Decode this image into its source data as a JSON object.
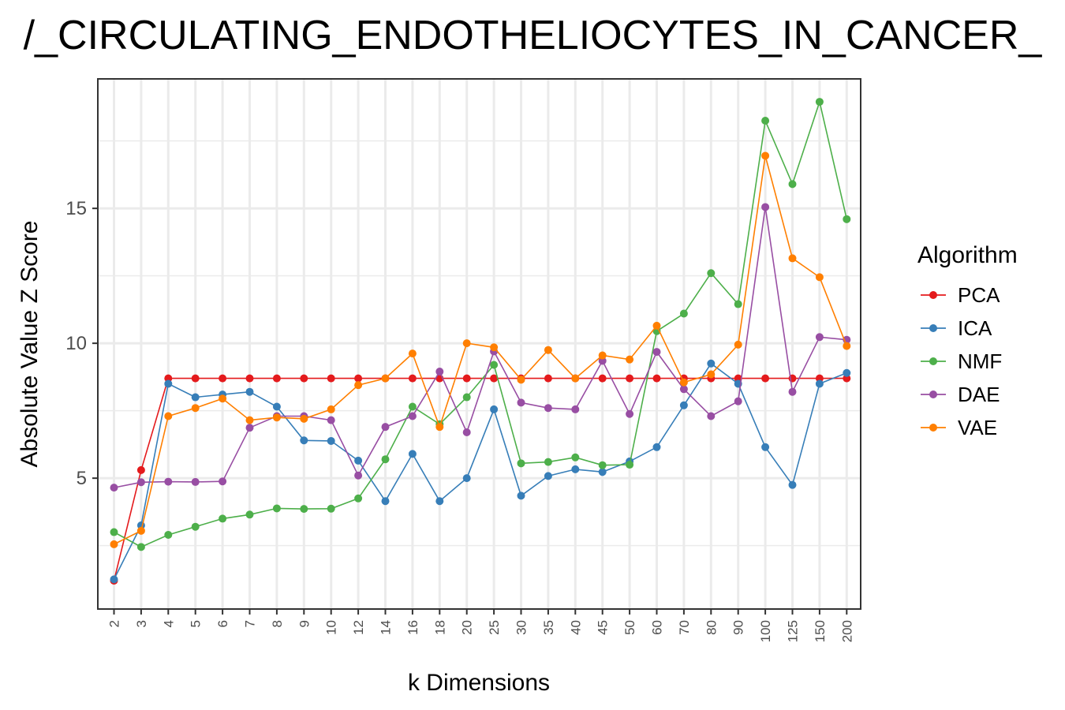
{
  "chart_data": {
    "type": "line",
    "title": "/_CIRCULATING_ENDOTHELIOCYTES_IN_CANCER_",
    "xlabel": "k Dimensions",
    "ylabel": "Absolute Value Z Score",
    "categories": [
      "2",
      "3",
      "4",
      "5",
      "6",
      "7",
      "8",
      "9",
      "10",
      "12",
      "14",
      "16",
      "18",
      "20",
      "25",
      "30",
      "35",
      "40",
      "45",
      "50",
      "60",
      "70",
      "80",
      "90",
      "100",
      "125",
      "150",
      "200"
    ],
    "ylim": [
      0.15,
      19.8
    ],
    "yticks": [
      5,
      10,
      15
    ],
    "grid": true,
    "legend_title": "Algorithm",
    "legend_position": "right",
    "series": [
      {
        "name": "PCA",
        "color": "#E41A1C",
        "values": [
          1.2,
          5.3,
          8.7,
          8.7,
          8.7,
          8.7,
          8.7,
          8.7,
          8.7,
          8.7,
          8.7,
          8.7,
          8.7,
          8.7,
          8.7,
          8.7,
          8.7,
          8.7,
          8.7,
          8.7,
          8.7,
          8.7,
          8.7,
          8.7,
          8.7,
          8.7,
          8.7,
          8.7
        ]
      },
      {
        "name": "ICA",
        "color": "#377EB8",
        "values": [
          1.25,
          3.25,
          8.5,
          8.0,
          8.1,
          8.2,
          7.65,
          6.4,
          6.38,
          5.65,
          4.15,
          5.9,
          4.15,
          5.0,
          7.55,
          4.35,
          5.08,
          5.33,
          5.23,
          5.62,
          6.15,
          7.7,
          9.25,
          8.5,
          6.15,
          4.75,
          8.5,
          8.9
        ]
      },
      {
        "name": "NMF",
        "color": "#4DAF4A",
        "values": [
          3.0,
          2.45,
          2.9,
          3.2,
          3.5,
          3.65,
          3.88,
          3.86,
          3.87,
          4.25,
          5.7,
          7.65,
          7.0,
          8.0,
          9.2,
          5.55,
          5.6,
          5.77,
          5.48,
          5.5,
          10.45,
          11.1,
          12.6,
          11.45,
          18.25,
          15.9,
          18.95,
          14.6
        ]
      },
      {
        "name": "DAE",
        "color": "#984EA3",
        "values": [
          4.65,
          4.85,
          4.87,
          4.86,
          4.88,
          6.87,
          7.3,
          7.3,
          7.15,
          5.1,
          6.9,
          7.3,
          8.95,
          6.7,
          9.7,
          7.8,
          7.6,
          7.55,
          9.35,
          7.38,
          9.68,
          8.3,
          7.3,
          7.85,
          15.05,
          8.2,
          10.23,
          10.13
        ]
      },
      {
        "name": "VAE",
        "color": "#FF7F00",
        "values": [
          2.55,
          3.05,
          7.3,
          7.6,
          7.95,
          7.15,
          7.25,
          7.2,
          7.55,
          8.45,
          8.7,
          9.62,
          6.9,
          10.0,
          9.85,
          8.65,
          9.75,
          8.7,
          9.55,
          9.4,
          10.65,
          8.55,
          8.85,
          9.95,
          16.95,
          13.15,
          12.45,
          9.9
        ]
      }
    ]
  }
}
